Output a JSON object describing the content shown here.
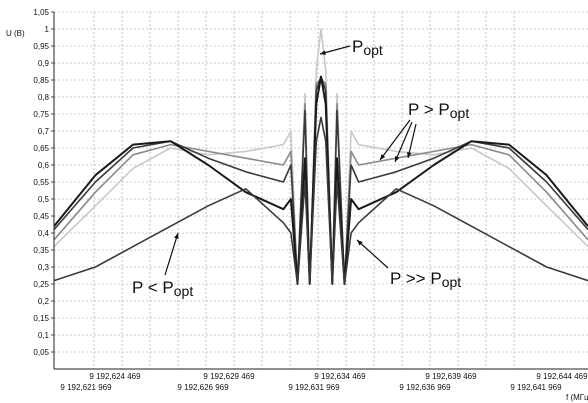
{
  "chart_data": {
    "type": "line",
    "ylabel": "U (B)",
    "xlabel": "f (MГц)",
    "ylim": [
      0.0,
      1.05
    ],
    "y_ticks": [
      0.05,
      0.1,
      0.15,
      0.2,
      0.25,
      0.3,
      0.35,
      0.4,
      0.45,
      0.5,
      0.55,
      0.6,
      0.65,
      0.7,
      0.75,
      0.8,
      0.85,
      0.9,
      0.95,
      1,
      1.05
    ],
    "y_tick_labels": [
      "0,05",
      "0,1",
      "0,15",
      "0,2",
      "0,25",
      "0,3",
      "0,35",
      "0,4",
      "0,45",
      "0,5",
      "0,55",
      "0,6",
      "0,65",
      "0,7",
      "0,75",
      "0,8",
      "0,85",
      "0,9",
      "0,95",
      "1",
      "1,05"
    ],
    "x_ticks_upper": [
      "9 192,624 469",
      "9 192,629 469",
      "9 192,634 469",
      "9 192,639 469",
      "9 192,644 469"
    ],
    "x_ticks_lower": [
      "9 192,621 969",
      "9 192,626 969",
      "9 192,631 969",
      "9 192,636 969",
      "9 192,641 969"
    ],
    "grid": true,
    "annotations": [
      {
        "main": "P",
        "sub": "opt"
      },
      {
        "main": "P > P",
        "sub": "opt"
      },
      {
        "main": "P < P",
        "sub": "opt"
      },
      {
        "main": "P >> P",
        "sub": "opt"
      }
    ],
    "series": [
      {
        "color": "#c8c8c8",
        "x": [
          -14.2,
          -12,
          -10,
          -8,
          -6,
          -4,
          -2,
          -1.6,
          -1.25,
          -0.85,
          -0.6,
          -0.25,
          0,
          0.25,
          0.6,
          0.85,
          1.25,
          1.6,
          2,
          4,
          6,
          8,
          10,
          12,
          14.2
        ],
        "y": [
          0.36,
          0.48,
          0.59,
          0.65,
          0.63,
          0.64,
          0.66,
          0.7,
          0.25,
          0.81,
          0.25,
          0.88,
          1.0,
          0.88,
          0.25,
          0.81,
          0.25,
          0.7,
          0.66,
          0.64,
          0.63,
          0.65,
          0.59,
          0.48,
          0.36
        ]
      },
      {
        "color": "#8a8a8a",
        "x": [
          -14.2,
          -12,
          -10,
          -8,
          -6,
          -4,
          -2,
          -1.6,
          -1.25,
          -0.85,
          -0.6,
          -0.25,
          0,
          0.25,
          0.6,
          0.85,
          1.25,
          1.6,
          2,
          4,
          6,
          8,
          10,
          12,
          14.2
        ],
        "y": [
          0.38,
          0.52,
          0.63,
          0.66,
          0.64,
          0.62,
          0.6,
          0.64,
          0.25,
          0.78,
          0.25,
          0.84,
          0.85,
          0.84,
          0.25,
          0.78,
          0.25,
          0.64,
          0.6,
          0.62,
          0.64,
          0.66,
          0.63,
          0.52,
          0.38
        ]
      },
      {
        "color": "#3a3a3a",
        "x": [
          -14.2,
          -12,
          -10,
          -8,
          -6,
          -4,
          -2,
          -1.6,
          -1.25,
          -0.85,
          -0.6,
          -0.25,
          0,
          0.25,
          0.6,
          0.85,
          1.25,
          1.6,
          2,
          4,
          6,
          8,
          10,
          12,
          14.2
        ],
        "y": [
          0.41,
          0.55,
          0.65,
          0.67,
          0.62,
          0.58,
          0.55,
          0.6,
          0.25,
          0.76,
          0.25,
          0.82,
          0.86,
          0.82,
          0.25,
          0.76,
          0.25,
          0.6,
          0.55,
          0.58,
          0.62,
          0.67,
          0.65,
          0.55,
          0.41
        ]
      },
      {
        "color": "#1a1a1a",
        "x": [
          -14.2,
          -12,
          -10,
          -8,
          -6,
          -4,
          -2,
          -1.6,
          -1.25,
          -0.85,
          -0.6,
          -0.25,
          0,
          0.25,
          0.6,
          0.85,
          1.25,
          1.6,
          2,
          4,
          6,
          8,
          10,
          12,
          14.2
        ],
        "y": [
          0.42,
          0.57,
          0.66,
          0.67,
          0.6,
          0.52,
          0.47,
          0.5,
          0.25,
          0.62,
          0.25,
          0.78,
          0.86,
          0.78,
          0.25,
          0.62,
          0.25,
          0.5,
          0.47,
          0.52,
          0.6,
          0.67,
          0.66,
          0.57,
          0.42
        ]
      },
      {
        "color": "#3a3a3a",
        "x": [
          -14.2,
          -12,
          -10,
          -8,
          -6,
          -4,
          -2,
          -1.6,
          -1.25,
          -0.85,
          -0.6,
          -0.25,
          0,
          0.25,
          0.6,
          0.85,
          1.25,
          1.6,
          2,
          4,
          6,
          8,
          10,
          12,
          14.2
        ],
        "y": [
          0.26,
          0.3,
          0.36,
          0.42,
          0.48,
          0.53,
          0.43,
          0.4,
          0.25,
          0.55,
          0.25,
          0.67,
          0.74,
          0.67,
          0.25,
          0.55,
          0.25,
          0.4,
          0.43,
          0.53,
          0.48,
          0.42,
          0.36,
          0.3,
          0.26
        ]
      }
    ]
  }
}
